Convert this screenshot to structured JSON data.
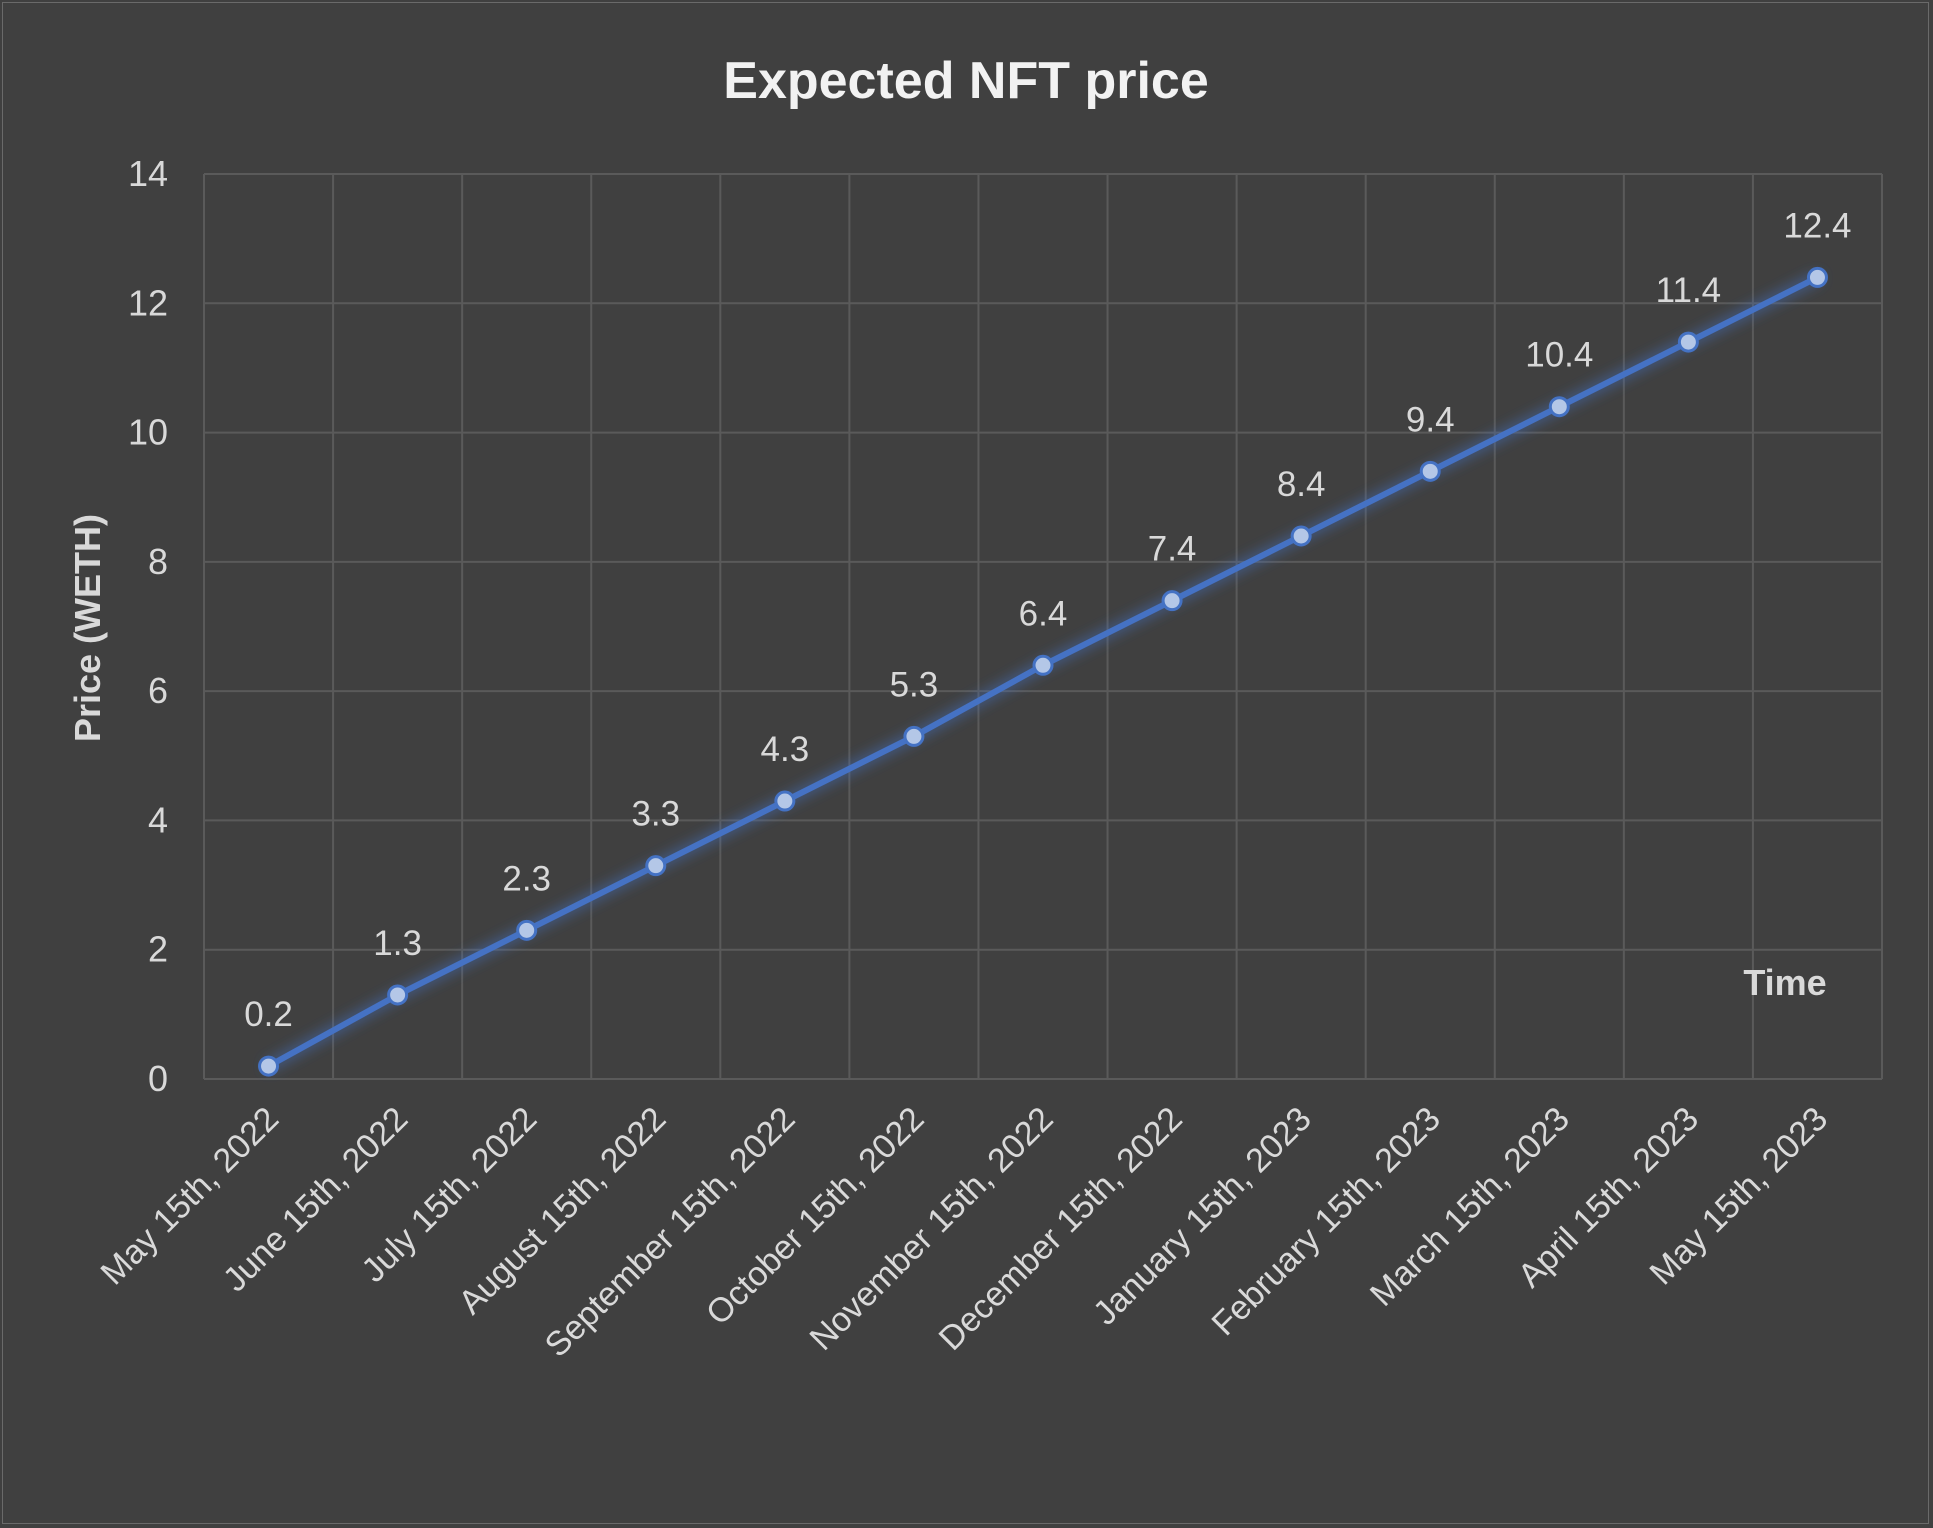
{
  "chart_data": {
    "type": "line",
    "title": "Expected NFT price",
    "xlabel": "Time",
    "ylabel": "Price (WETH)",
    "categories": [
      "May 15th, 2022",
      "June 15th, 2022",
      "July 15th, 2022",
      "August 15th, 2022",
      "September 15th, 2022",
      "October 15th, 2022",
      "November 15th, 2022",
      "December 15th, 2022",
      "January 15th, 2023",
      "February 15th, 2023",
      "March 15th, 2023",
      "April 15th, 2023",
      "May 15th, 2023"
    ],
    "series": [
      {
        "values": [
          0.2,
          1.3,
          2.3,
          3.3,
          4.3,
          5.3,
          6.4,
          7.4,
          8.4,
          9.4,
          10.4,
          11.4,
          12.4
        ],
        "color": "#4472c4"
      }
    ],
    "data_labels": [
      "0.2",
      "1.3",
      "2.3",
      "3.3",
      "4.3",
      "5.3",
      "6.4",
      "7.4",
      "8.4",
      "9.4",
      "10.4",
      "11.4",
      "12.4"
    ],
    "yticks": [
      "0",
      "2",
      "4",
      "6",
      "8",
      "10",
      "12",
      "14"
    ],
    "ylim": [
      0,
      14
    ],
    "grid": true,
    "legend": "none"
  }
}
